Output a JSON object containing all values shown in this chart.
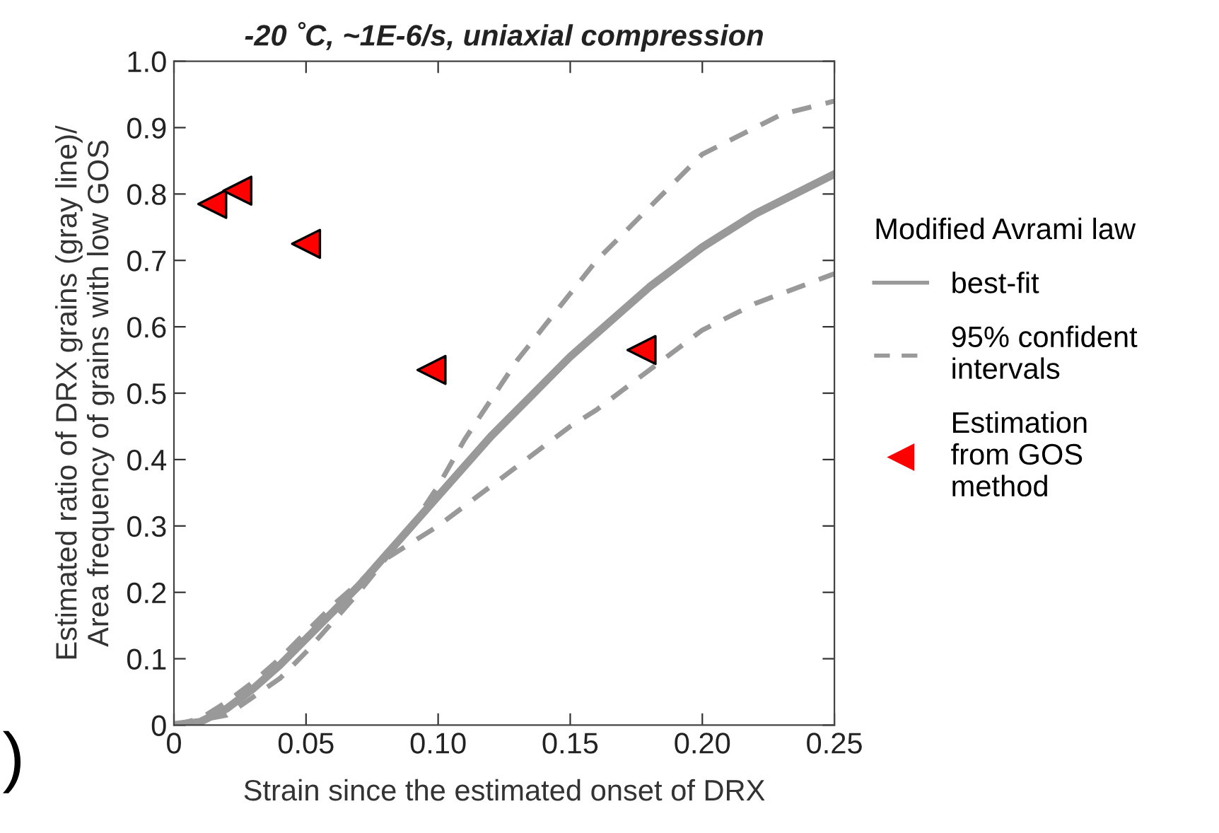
{
  "chart_data": {
    "type": "line",
    "title": "-20 ˚C, ~1E-6/s, uniaxial compression",
    "xlabel": "Strain since the estimated onset of DRX",
    "ylabel": "Estimated ratio of DRX grains (gray line)/\nArea frequency of grains with low GOS",
    "legend_title": "Modified Avrami law",
    "series": [
      {
        "name": "best-fit",
        "color": "#999999",
        "line_style": "solid",
        "x": [
          0,
          0.01,
          0.02,
          0.03,
          0.04,
          0.05,
          0.06,
          0.07,
          0.08,
          0.09,
          0.1,
          0.11,
          0.12,
          0.13,
          0.14,
          0.15,
          0.16,
          0.17,
          0.18,
          0.19,
          0.2,
          0.21,
          0.22,
          0.23,
          0.24,
          0.25
        ],
        "values": [
          0,
          0.005,
          0.025,
          0.055,
          0.09,
          0.13,
          0.17,
          0.21,
          0.255,
          0.3,
          0.345,
          0.39,
          0.435,
          0.475,
          0.515,
          0.555,
          0.59,
          0.625,
          0.66,
          0.69,
          0.72,
          0.745,
          0.77,
          0.79,
          0.81,
          0.83
        ]
      },
      {
        "name": "95% confident\nintervals",
        "color": "#999999",
        "line_style": "dashed",
        "x": [
          0,
          0.02,
          0.04,
          0.05,
          0.06,
          0.07,
          0.08,
          0.09,
          0.1,
          0.11,
          0.12,
          0.13,
          0.14,
          0.15,
          0.16,
          0.17,
          0.18,
          0.19,
          0.2,
          0.21,
          0.22,
          0.23,
          0.24,
          0.25
        ],
        "values": [
          0,
          0.015,
          0.07,
          0.11,
          0.155,
          0.2,
          0.25,
          0.3,
          0.36,
          0.43,
          0.49,
          0.55,
          0.6,
          0.65,
          0.7,
          0.74,
          0.78,
          0.82,
          0.86,
          0.88,
          0.9,
          0.92,
          0.93,
          0.94
        ]
      },
      {
        "color": "#999999",
        "line_style": "dashed",
        "x": [
          0,
          0.01,
          0.02,
          0.03,
          0.04,
          0.05,
          0.06,
          0.07,
          0.08,
          0.09,
          0.1,
          0.12,
          0.13,
          0.14,
          0.15,
          0.16,
          0.17,
          0.18,
          0.19,
          0.2,
          0.22,
          0.25
        ],
        "values": [
          0,
          0.01,
          0.035,
          0.065,
          0.1,
          0.14,
          0.18,
          0.215,
          0.25,
          0.275,
          0.3,
          0.36,
          0.39,
          0.42,
          0.45,
          0.475,
          0.505,
          0.535,
          0.565,
          0.595,
          0.635,
          0.68
        ]
      },
      {
        "name": "Estimation\nfrom GOS\nmethod",
        "type": "scatter",
        "marker": "triangle",
        "color": "#ff0000",
        "x": [
          0.0145,
          0.024,
          0.05,
          0.0975,
          0.177
        ],
        "values": [
          0.785,
          0.805,
          0.725,
          0.535,
          0.565
        ]
      }
    ],
    "xlim": [
      0,
      0.25
    ],
    "xticks": [
      0,
      {
        "value": 0.05,
        "label": "0.05"
      },
      {
        "value": 0.1,
        "label": "0.10"
      },
      {
        "value": 0.15,
        "label": "0.15"
      },
      {
        "value": 0.2,
        "label": "0.20"
      },
      0.25
    ],
    "ylim": [
      0,
      1
    ],
    "yticks": [
      0,
      0.1,
      0.2,
      0.3,
      0.4,
      0.5,
      0.6,
      0.7,
      0.8,
      0.9,
      {
        "value": 1,
        "label": "1.0"
      }
    ],
    "grid": false,
    "legend": "right",
    "annotations": [
      ")"
    ]
  }
}
